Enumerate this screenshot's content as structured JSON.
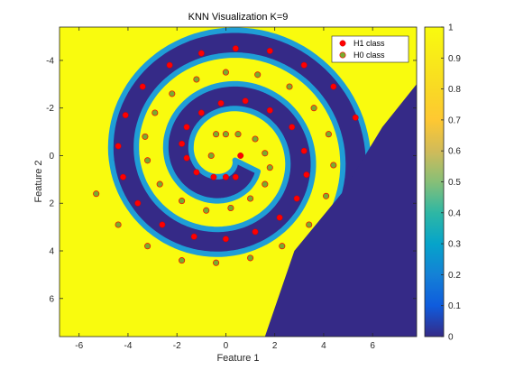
{
  "chart_data": {
    "type": "scatter",
    "title": "KNN Visualization K=9",
    "xlabel": "Feature 1",
    "ylabel": "Feature 2",
    "xlim": [
      -6.8,
      7.8
    ],
    "ylim": [
      -5.4,
      7.6
    ],
    "y_reversed": true,
    "xticks": [
      -6,
      -4,
      -2,
      0,
      2,
      4,
      6
    ],
    "yticks": [
      -4,
      -2,
      0,
      2,
      4,
      6
    ],
    "colorbar": {
      "min": 0,
      "max": 1,
      "ticks": [
        0,
        0.1,
        0.2,
        0.3,
        0.4,
        0.5,
        0.6,
        0.7,
        0.8,
        0.9,
        1
      ],
      "colormap": "parula"
    },
    "legend": {
      "placement": "top-right",
      "entries": [
        {
          "label": "H1 class",
          "color": "#ff0000"
        },
        {
          "label": "H0 class",
          "color": "#77ac30"
        }
      ]
    },
    "series": [
      {
        "name": "H1 class",
        "color": "#ff0000",
        "points": [
          [
            0.6,
            0.0
          ],
          [
            0.4,
            0.9
          ],
          [
            0.0,
            0.9
          ],
          [
            -0.5,
            0.9
          ],
          [
            -1.2,
            0.7
          ],
          [
            -1.6,
            0.1
          ],
          [
            -1.8,
            -0.5
          ],
          [
            -1.6,
            -1.2
          ],
          [
            -1.0,
            -1.8
          ],
          [
            -0.2,
            -2.2
          ],
          [
            0.8,
            -2.3
          ],
          [
            1.8,
            -1.9
          ],
          [
            2.7,
            -1.2
          ],
          [
            3.2,
            -0.2
          ],
          [
            3.3,
            0.8
          ],
          [
            2.9,
            1.8
          ],
          [
            2.2,
            2.6
          ],
          [
            1.2,
            3.2
          ],
          [
            0.0,
            3.5
          ],
          [
            -1.3,
            3.4
          ],
          [
            -2.6,
            2.9
          ],
          [
            -3.6,
            2.0
          ],
          [
            -4.2,
            0.9
          ],
          [
            -4.4,
            -0.4
          ],
          [
            -4.1,
            -1.7
          ],
          [
            -3.4,
            -2.9
          ],
          [
            -2.3,
            -3.8
          ],
          [
            -1.0,
            -4.3
          ],
          [
            0.4,
            -4.5
          ],
          [
            1.8,
            -4.4
          ],
          [
            3.2,
            -3.8
          ],
          [
            4.4,
            -2.9
          ],
          [
            5.3,
            -1.6
          ]
        ]
      },
      {
        "name": "H0 class",
        "color": "#77ac30",
        "points": [
          [
            -0.6,
            0.0
          ],
          [
            -0.4,
            -0.9
          ],
          [
            0.0,
            -0.9
          ],
          [
            0.5,
            -0.9
          ],
          [
            1.2,
            -0.7
          ],
          [
            1.6,
            -0.1
          ],
          [
            1.8,
            0.5
          ],
          [
            1.6,
            1.2
          ],
          [
            1.0,
            1.8
          ],
          [
            0.2,
            2.2
          ],
          [
            -0.8,
            2.3
          ],
          [
            -1.8,
            1.9
          ],
          [
            -2.7,
            1.2
          ],
          [
            -3.2,
            0.2
          ],
          [
            -3.3,
            -0.8
          ],
          [
            -2.9,
            -1.8
          ],
          [
            -2.2,
            -2.6
          ],
          [
            -1.2,
            -3.2
          ],
          [
            0.0,
            -3.5
          ],
          [
            1.3,
            -3.4
          ],
          [
            2.6,
            -2.9
          ],
          [
            3.6,
            -2.0
          ],
          [
            4.2,
            -0.9
          ],
          [
            4.4,
            0.4
          ],
          [
            4.1,
            1.7
          ],
          [
            3.4,
            2.9
          ],
          [
            2.3,
            3.8
          ],
          [
            1.0,
            4.3
          ],
          [
            -0.4,
            4.5
          ],
          [
            -1.8,
            4.4
          ],
          [
            -3.2,
            3.8
          ],
          [
            -4.4,
            2.9
          ],
          [
            -5.3,
            1.6
          ]
        ]
      }
    ]
  }
}
